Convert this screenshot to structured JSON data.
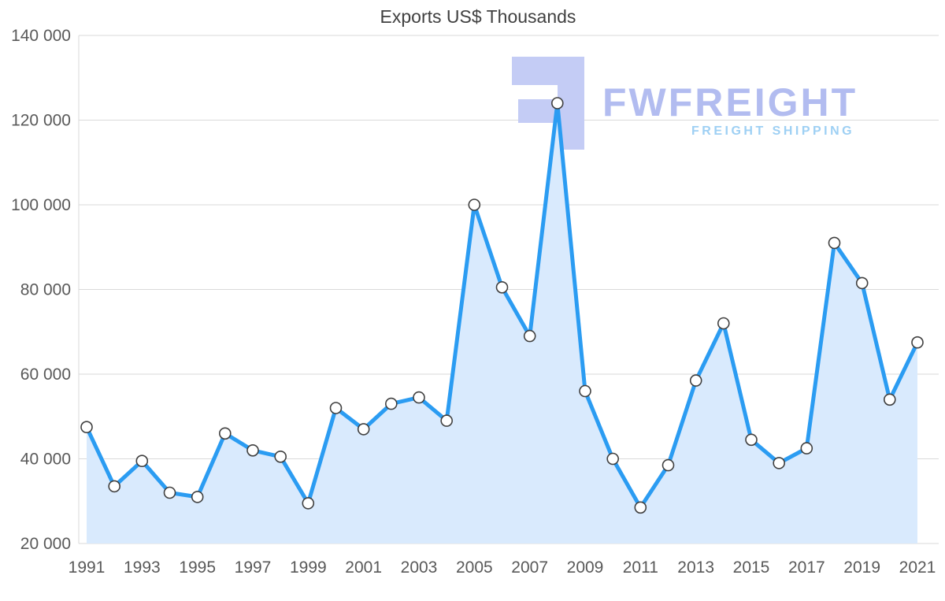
{
  "chart_data": {
    "type": "area",
    "title": "Exports US$ Thousands",
    "xlabel": "",
    "ylabel": "",
    "x": [
      1991,
      1992,
      1993,
      1994,
      1995,
      1996,
      1997,
      1998,
      1999,
      2000,
      2001,
      2002,
      2003,
      2004,
      2005,
      2006,
      2007,
      2008,
      2009,
      2010,
      2011,
      2012,
      2013,
      2014,
      2015,
      2016,
      2017,
      2018,
      2019,
      2020,
      2021
    ],
    "values": [
      47500,
      33500,
      39500,
      32000,
      31000,
      46000,
      42000,
      40500,
      29500,
      52000,
      47000,
      53000,
      54500,
      49000,
      100000,
      80500,
      69000,
      124000,
      56000,
      40000,
      28500,
      38500,
      58500,
      72000,
      44500,
      39000,
      42500,
      91000,
      81500,
      54000,
      67500
    ],
    "ylim": [
      20000,
      140000
    ],
    "y_tick_step": 20000,
    "y_tick_labels": [
      "20 000",
      "40 000",
      "60 000",
      "80 000",
      "100 000",
      "120 000",
      "140 000"
    ],
    "x_tick_labels": [
      "1991",
      "1993",
      "1995",
      "1997",
      "1999",
      "2001",
      "2003",
      "2005",
      "2007",
      "2009",
      "2011",
      "2013",
      "2015",
      "2017",
      "2019",
      "2021"
    ],
    "x_tick_step": 2,
    "grid": "horizontal",
    "legend": "none",
    "colors": {
      "line": "#2b9cf2",
      "area_fill": "#d9eafd",
      "marker_fill": "#ffffff",
      "marker_stroke": "#404040",
      "grid_line": "#d9d9d9",
      "axis_text": "#595959",
      "title_text": "#404040"
    }
  },
  "watermark": {
    "brand": "FWFREIGHT",
    "tagline": "FREIGHT SHIPPING",
    "brand_color": "#b2bcf0",
    "tagline_color": "#9ed0f4",
    "glyph_color": "#c4ccf5"
  }
}
